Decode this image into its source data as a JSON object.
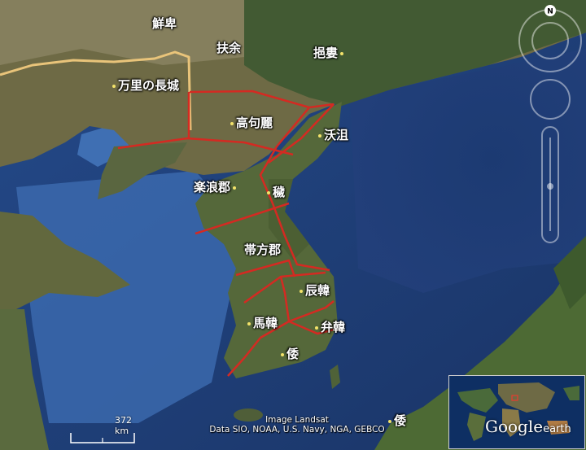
{
  "map": {
    "labels": {
      "xianbei": "鮮卑",
      "fuyu": "扶余",
      "yilou": "挹婁",
      "great_wall": "万里の長城",
      "goguryeo": "高句麗",
      "okjeo": "沃沮",
      "lelang": "楽浪郡",
      "ye": "穢",
      "daifang": "帯方郡",
      "jinhan": "辰韓",
      "mahan": "馬韓",
      "byeonhan": "弁韓",
      "wa_korea": "倭",
      "wa_japan": "倭"
    },
    "attribution_line1": "Image Landsat",
    "attribution_line2": "Data SIO, NOAA, U.S. Navy, NGA, GEBCO",
    "scale_label": "372 km",
    "compass_letter": "N",
    "logo_main": "Google",
    "logo_sub": "earth",
    "colors": {
      "border_line": "#d42a22",
      "wall_line": "#e9c47a",
      "sea": "#2a4f8e",
      "land": "#5c6b3c"
    }
  }
}
